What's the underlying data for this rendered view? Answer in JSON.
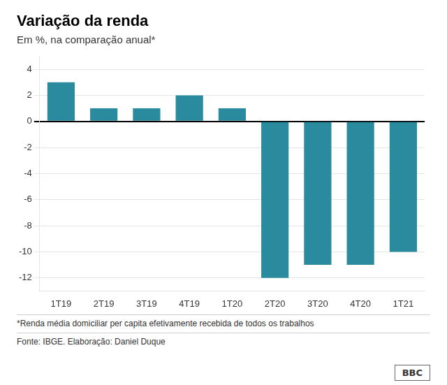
{
  "chart_data": {
    "type": "bar",
    "title": "Variação da renda",
    "subtitle": "Em %, na comparação anual*",
    "categories": [
      "1T19",
      "2T19",
      "3T19",
      "4T19",
      "1T20",
      "2T20",
      "3T20",
      "4T20",
      "1T21"
    ],
    "values": [
      3.0,
      1.0,
      1.0,
      2.0,
      1.0,
      -12.0,
      -11.0,
      -11.0,
      -10.0
    ],
    "color": "#2a8a9e",
    "ylim": [
      -13,
      5
    ],
    "yticks": [
      -12,
      -10,
      -8,
      -6,
      -4,
      -2,
      0,
      2,
      4
    ],
    "grid": true,
    "annotations": [
      "*Renda média domiciliar per capita efetivamente recebida de todos os trabalhos",
      "Fonte: IBGE. Elaboração: Daniel Duque",
      "BBC"
    ]
  }
}
